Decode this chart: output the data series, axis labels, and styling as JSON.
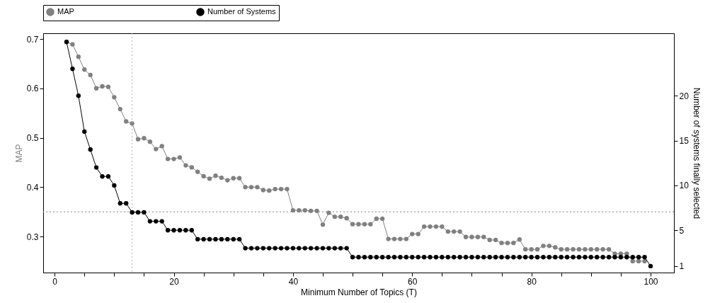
{
  "chart_data": {
    "type": "line",
    "xlabel": "Minimum Number of Topics (T)",
    "ylabel": "MAP",
    "y2label": "Number of systems finally selected",
    "x": [
      2,
      3,
      4,
      5,
      6,
      7,
      8,
      9,
      10,
      11,
      12,
      13,
      14,
      15,
      16,
      17,
      18,
      19,
      20,
      21,
      22,
      23,
      24,
      25,
      26,
      27,
      28,
      29,
      30,
      31,
      32,
      33,
      34,
      35,
      36,
      37,
      38,
      39,
      40,
      41,
      42,
      43,
      44,
      45,
      46,
      47,
      48,
      49,
      50,
      51,
      52,
      53,
      54,
      55,
      56,
      57,
      58,
      59,
      60,
      61,
      62,
      63,
      64,
      65,
      66,
      67,
      68,
      69,
      70,
      71,
      72,
      73,
      74,
      75,
      76,
      77,
      78,
      79,
      80,
      81,
      82,
      83,
      84,
      85,
      86,
      87,
      88,
      89,
      90,
      91,
      92,
      93,
      94,
      95,
      96,
      97,
      98,
      99,
      100
    ],
    "series": [
      {
        "name": "MAP",
        "color": "#808080",
        "values": [
          0.694,
          0.689,
          0.664,
          0.638,
          0.627,
          0.6,
          0.604,
          0.603,
          0.582,
          0.558,
          0.533,
          0.529,
          0.497,
          0.499,
          0.492,
          0.477,
          0.483,
          0.457,
          0.457,
          0.46,
          0.444,
          0.44,
          0.431,
          0.422,
          0.417,
          0.423,
          0.419,
          0.414,
          0.418,
          0.418,
          0.4,
          0.4,
          0.4,
          0.394,
          0.393,
          0.396,
          0.396,
          0.396,
          0.353,
          0.353,
          0.353,
          0.352,
          0.352,
          0.324,
          0.348,
          0.34,
          0.34,
          0.337,
          0.325,
          0.325,
          0.325,
          0.325,
          0.336,
          0.336,
          0.295,
          0.295,
          0.295,
          0.295,
          0.305,
          0.305,
          0.32,
          0.32,
          0.32,
          0.32,
          0.31,
          0.31,
          0.31,
          0.299,
          0.299,
          0.299,
          0.299,
          0.293,
          0.293,
          0.287,
          0.287,
          0.287,
          0.294,
          0.274,
          0.274,
          0.274,
          0.281,
          0.281,
          0.278,
          0.274,
          0.274,
          0.274,
          0.274,
          0.274,
          0.274,
          0.274,
          0.274,
          0.274,
          0.265,
          0.265,
          0.265,
          0.25,
          0.25,
          0.25,
          null
        ]
      },
      {
        "name": "Number of Systems",
        "color": "#000000",
        "axis": "y2",
        "values": [
          26,
          23,
          20,
          16,
          14,
          12,
          11,
          11,
          10,
          8,
          8,
          7,
          7,
          7,
          6,
          6,
          6,
          5,
          5,
          5,
          5,
          5,
          4,
          4,
          4,
          4,
          4,
          4,
          4,
          4,
          3,
          3,
          3,
          3,
          3,
          3,
          3,
          3,
          3,
          3,
          3,
          3,
          3,
          3,
          3,
          3,
          3,
          3,
          2,
          2,
          2,
          2,
          2,
          2,
          2,
          2,
          2,
          2,
          2,
          2,
          2,
          2,
          2,
          2,
          2,
          2,
          2,
          2,
          2,
          2,
          2,
          2,
          2,
          2,
          2,
          2,
          2,
          2,
          2,
          2,
          2,
          2,
          2,
          2,
          2,
          2,
          2,
          2,
          2,
          2,
          2,
          2,
          2,
          2,
          2,
          2,
          2,
          2,
          1
        ]
      }
    ],
    "xlim": [
      -1.92,
      103.92
    ],
    "xticks": [
      0,
      {
        "value": 5,
        "label": null
      },
      {
        "value": 10,
        "label": null
      },
      {
        "value": 15,
        "label": null
      },
      20,
      {
        "value": 25,
        "label": null
      },
      {
        "value": 30,
        "label": null
      },
      {
        "value": 35,
        "label": null
      },
      40,
      {
        "value": 45,
        "label": null
      },
      {
        "value": 50,
        "label": null
      },
      {
        "value": 55,
        "label": null
      },
      60,
      {
        "value": 65,
        "label": null
      },
      {
        "value": 70,
        "label": null
      },
      {
        "value": 75,
        "label": null
      },
      80,
      {
        "value": 85,
        "label": null
      },
      {
        "value": 90,
        "label": null
      },
      {
        "value": 95,
        "label": null
      },
      100
    ],
    "ylim": [
      0.227,
      0.7115
    ],
    "yticks": [
      0.3,
      0.4,
      0.5,
      0.6,
      0.7
    ],
    "y2lim": [
      0.28,
      26.97
    ],
    "y2ticks": [
      1,
      5,
      10,
      15,
      20
    ],
    "ref_lines": [
      {
        "axis": "x",
        "value": 13,
        "color": "#b0b0b0",
        "line_style": "dotted"
      },
      {
        "axis": "y",
        "value": 0.35,
        "color": "#808080",
        "line_style": "dotted"
      }
    ],
    "marker": "circle",
    "line_style": "solid",
    "legend": "top"
  }
}
